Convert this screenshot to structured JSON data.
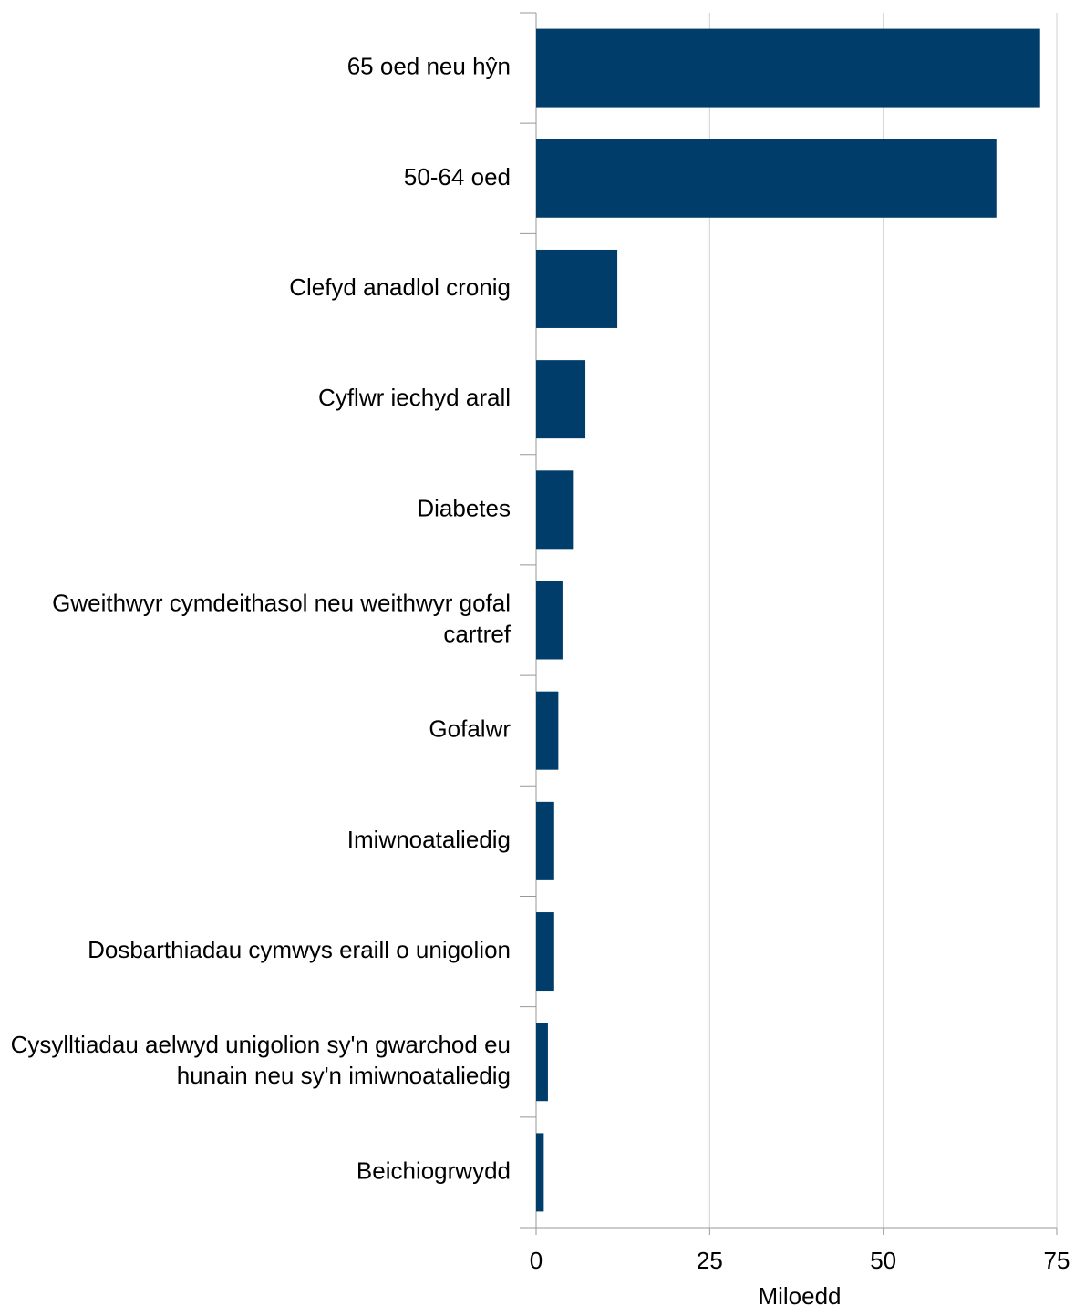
{
  "chart_data": {
    "type": "hbar",
    "categories": [
      "65 oed neu hŷn",
      "50-64 oed",
      "Clefyd anadlol cronig",
      "Cyflwr iechyd arall",
      "Diabetes",
      "Gweithwyr cymdeithasol neu weithwyr gofal cartref",
      "Gofalwr",
      "Imiwnoataliedig",
      "Dosbarthiadau cymwys eraill o unigolion",
      "Cysylltiadau aelwyd unigolion sy'n gwarchod eu hunain neu sy'n imiwnoataliedig",
      "Beichiogrwydd"
    ],
    "values": [
      72.6,
      66.3,
      11.7,
      7.1,
      5.3,
      3.8,
      3.2,
      2.6,
      2.6,
      1.7,
      1.1
    ],
    "color": "#003d6b",
    "xlabel": "Miloedd",
    "xlim": [
      0,
      75
    ],
    "xticks": [
      0,
      25,
      50,
      75
    ],
    "grid": true
  }
}
